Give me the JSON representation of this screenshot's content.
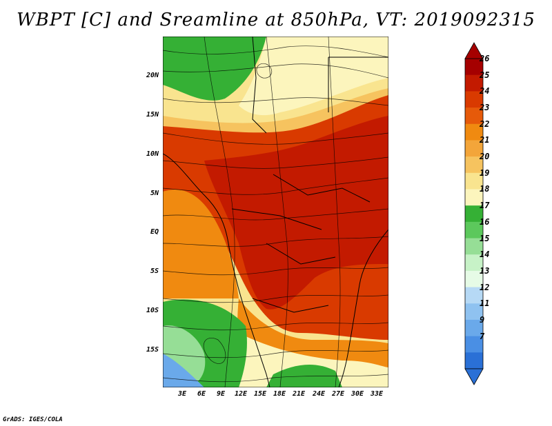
{
  "title": "WBPT [C] and Sreamline at 850hPa, VT: 2019092315",
  "credit": "GrADS: IGES/COLA",
  "y_ticks": [
    "20N",
    "15N",
    "10N",
    "5N",
    "EQ",
    "5S",
    "10S",
    "15S"
  ],
  "x_ticks": [
    "3E",
    "6E",
    "9E",
    "12E",
    "15E",
    "18E",
    "21E",
    "24E",
    "27E",
    "30E",
    "33E"
  ],
  "colorbar": {
    "labels": [
      "26",
      "25",
      "24",
      "23",
      "22",
      "21",
      "20",
      "19",
      "18",
      "17",
      "16",
      "15",
      "14",
      "13",
      "12",
      "11",
      "9",
      "7"
    ],
    "colors": [
      "#a50000",
      "#c31a00",
      "#d93a00",
      "#e65a0a",
      "#f08a10",
      "#f3a53a",
      "#f6c35f",
      "#f9e48f",
      "#fcf5bd",
      "#35b035",
      "#5cc85c",
      "#96de96",
      "#c7f2c7",
      "#e6fbe6",
      "#b6d9f5",
      "#8fc2f0",
      "#6aa9ea",
      "#4a8fe4",
      "#2a70d6"
    ]
  }
}
